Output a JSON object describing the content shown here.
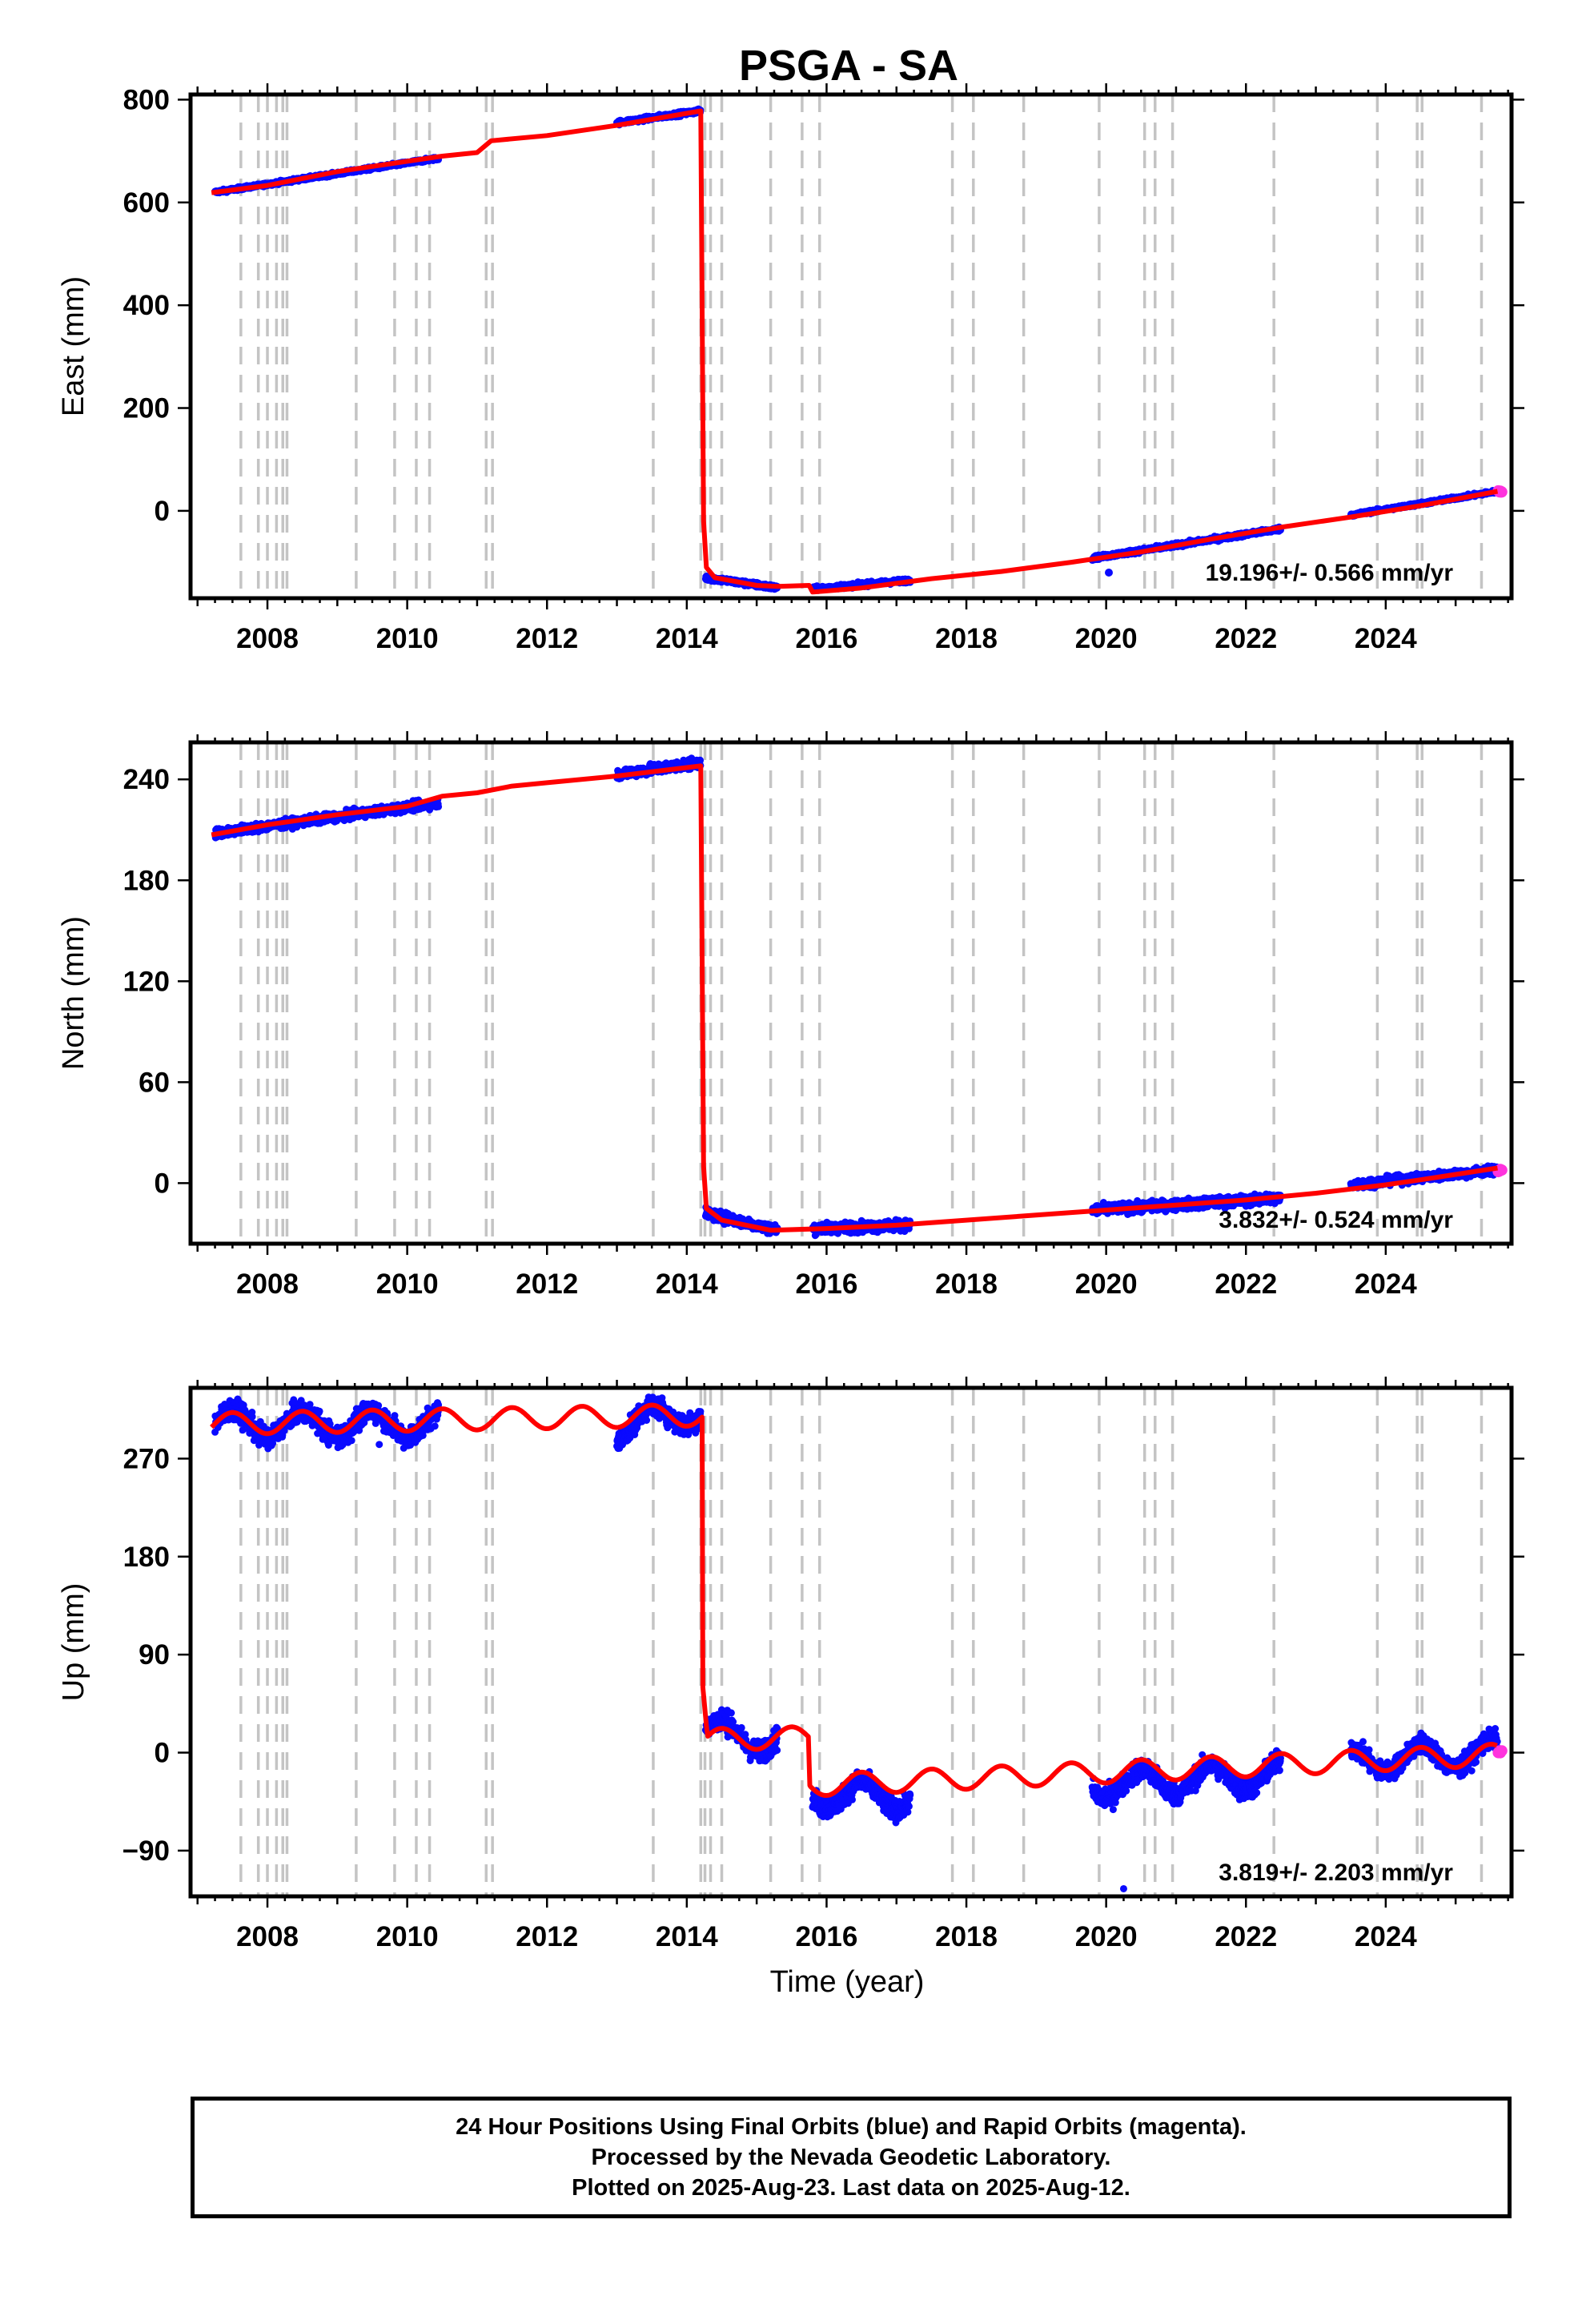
{
  "chart_data": [
    {
      "type": "scatter",
      "panel": "east",
      "title": "PSGA - SA",
      "ylabel": "East (mm)",
      "xlim": [
        2006.9,
        2025.8
      ],
      "ylim": [
        -170,
        810
      ],
      "x_ticks": [
        "2008",
        "2010",
        "2012",
        "2014",
        "2016",
        "2018",
        "2020",
        "2022",
        "2024"
      ],
      "y_ticks": [
        "800",
        "600",
        "400",
        "200",
        "0"
      ],
      "rate_label": "19.196+/- 0.566 mm/yr",
      "rate_marker_color": "#0a0aff",
      "data_segments": [
        {
          "x0": 2007.25,
          "x1": 2010.45,
          "y0": 620,
          "y1": 686,
          "noise": 3
        },
        {
          "x0": 2013.0,
          "x1": 2014.2,
          "y0": 755,
          "y1": 778,
          "noise": 4
        },
        {
          "x0": 2014.27,
          "x1": 2015.3,
          "y0": -130,
          "y1": -150,
          "noise": 5
        },
        {
          "x0": 2015.8,
          "x1": 2017.2,
          "y0": -152,
          "y1": -135,
          "noise": 4
        },
        {
          "x0": 2019.8,
          "x1": 2022.5,
          "y0": -92,
          "y1": -35,
          "noise": 4
        },
        {
          "x0": 2023.5,
          "x1": 2025.6,
          "y0": -8,
          "y1": 38,
          "noise": 3
        }
      ],
      "model_points": [
        [
          2007.2,
          619
        ],
        [
          2008.0,
          633
        ],
        [
          2009.0,
          660
        ],
        [
          2010.0,
          680
        ],
        [
          2010.5,
          690
        ],
        [
          2011.0,
          697
        ],
        [
          2011.2,
          720
        ],
        [
          2012.0,
          730
        ],
        [
          2013.0,
          750
        ],
        [
          2014.2,
          778
        ],
        [
          2014.24,
          -20
        ],
        [
          2014.28,
          -110
        ],
        [
          2014.4,
          -130
        ],
        [
          2015.0,
          -145
        ],
        [
          2015.3,
          -147
        ],
        [
          2015.75,
          -145
        ],
        [
          2015.8,
          -158
        ],
        [
          2016.5,
          -150
        ],
        [
          2017.5,
          -132
        ],
        [
          2018.5,
          -118
        ],
        [
          2019.5,
          -100
        ],
        [
          2020.5,
          -80
        ],
        [
          2021.5,
          -55
        ],
        [
          2022.5,
          -32
        ],
        [
          2023.5,
          -12
        ],
        [
          2024.5,
          10
        ],
        [
          2025.6,
          38
        ]
      ]
    },
    {
      "type": "scatter",
      "panel": "north",
      "ylabel": "North (mm)",
      "xlim": [
        2006.9,
        2025.8
      ],
      "ylim": [
        -36,
        262
      ],
      "x_ticks": [
        "2008",
        "2010",
        "2012",
        "2014",
        "2016",
        "2018",
        "2020",
        "2022",
        "2024"
      ],
      "y_ticks": [
        "240",
        "180",
        "120",
        "60",
        "0"
      ],
      "rate_label": "3.832+/- 0.524 mm/yr",
      "data_segments": [
        {
          "x0": 2007.25,
          "x1": 2010.45,
          "y0": 208,
          "y1": 226,
          "noise": 2.5
        },
        {
          "x0": 2013.0,
          "x1": 2014.2,
          "y0": 243,
          "y1": 250,
          "noise": 3
        },
        {
          "x0": 2014.27,
          "x1": 2015.3,
          "y0": -18,
          "y1": -28,
          "noise": 3
        },
        {
          "x0": 2015.8,
          "x1": 2017.2,
          "y0": -27,
          "y1": -25,
          "noise": 3
        },
        {
          "x0": 2019.8,
          "x1": 2022.5,
          "y0": -16,
          "y1": -9,
          "noise": 3
        },
        {
          "x0": 2023.5,
          "x1": 2025.6,
          "y0": -1,
          "y1": 8,
          "noise": 2.5
        }
      ],
      "model_points": [
        [
          2007.2,
          207
        ],
        [
          2008.0,
          213
        ],
        [
          2009.0,
          219
        ],
        [
          2010.0,
          224
        ],
        [
          2010.5,
          230
        ],
        [
          2011.0,
          232
        ],
        [
          2011.5,
          236
        ],
        [
          2012.0,
          238
        ],
        [
          2013.0,
          242
        ],
        [
          2014.2,
          248
        ],
        [
          2014.24,
          10
        ],
        [
          2014.28,
          -15
        ],
        [
          2014.5,
          -22
        ],
        [
          2015.2,
          -28
        ],
        [
          2016.0,
          -27
        ],
        [
          2017.0,
          -25
        ],
        [
          2018.0,
          -22
        ],
        [
          2019.0,
          -19
        ],
        [
          2020.0,
          -16
        ],
        [
          2021.0,
          -13
        ],
        [
          2022.0,
          -10
        ],
        [
          2023.0,
          -6
        ],
        [
          2024.0,
          -1
        ],
        [
          2024.5,
          2
        ],
        [
          2025.6,
          9
        ]
      ]
    },
    {
      "type": "scatter",
      "panel": "up",
      "ylabel": "Up (mm)",
      "xlabel": "Time (year)",
      "xlim": [
        2006.9,
        2025.8
      ],
      "ylim": [
        -132,
        335
      ],
      "x_ticks": [
        "2008",
        "2010",
        "2012",
        "2014",
        "2016",
        "2018",
        "2020",
        "2022",
        "2024"
      ],
      "y_ticks": [
        "270",
        "180",
        "90",
        "0",
        "−90"
      ],
      "rate_label": "3.819+/- 2.203 mm/yr",
      "data_segments": [
        {
          "x0": 2007.25,
          "x1": 2010.45,
          "y0": 302,
          "y1": 302,
          "noise": 10
        },
        {
          "x0": 2013.0,
          "x1": 2014.2,
          "y0": 300,
          "y1": 315,
          "noise": 10
        },
        {
          "x0": 2014.27,
          "x1": 2015.3,
          "y0": 20,
          "y1": 10,
          "noise": 10
        },
        {
          "x0": 2015.8,
          "x1": 2017.2,
          "y0": -38,
          "y1": -40,
          "noise": 10
        },
        {
          "x0": 2019.8,
          "x1": 2022.5,
          "y0": -30,
          "y1": -20,
          "noise": 10
        },
        {
          "x0": 2023.5,
          "x1": 2025.6,
          "y0": -8,
          "y1": 0,
          "noise": 9
        }
      ],
      "model_points_note": "seasonal",
      "seasonal_amplitude": 10,
      "offsets": [
        [
          2014.22,
          305,
          30
        ],
        [
          2015.75,
          12,
          -32
        ],
        [
          2014.3,
          30,
          20
        ]
      ]
    }
  ],
  "event_years": [
    2007.62,
    2007.87,
    2008.0,
    2008.13,
    2008.22,
    2008.28,
    2009.27,
    2009.82,
    2010.13,
    2010.32,
    2011.13,
    2011.22,
    2013.52,
    2014.2,
    2014.26,
    2014.34,
    2014.5,
    2015.2,
    2015.65,
    2015.9,
    2017.8,
    2018.1,
    2018.82,
    2019.9,
    2020.55,
    2020.7,
    2020.95,
    2022.4,
    2023.88,
    2024.45,
    2024.52,
    2025.37
  ],
  "colors": {
    "final_orbits": "#0a0aff",
    "rapid_orbits": "#ff33dd",
    "model": "#ff0000",
    "event_lines": "#c4c4c4"
  },
  "footer": {
    "line1": "24 Hour Positions Using Final Orbits (blue) and Rapid Orbits (magenta).",
    "line2": "Processed by the Nevada Geodetic Laboratory.",
    "line3": "Plotted on 2025-Aug-23. Last data on 2025-Aug-12."
  }
}
